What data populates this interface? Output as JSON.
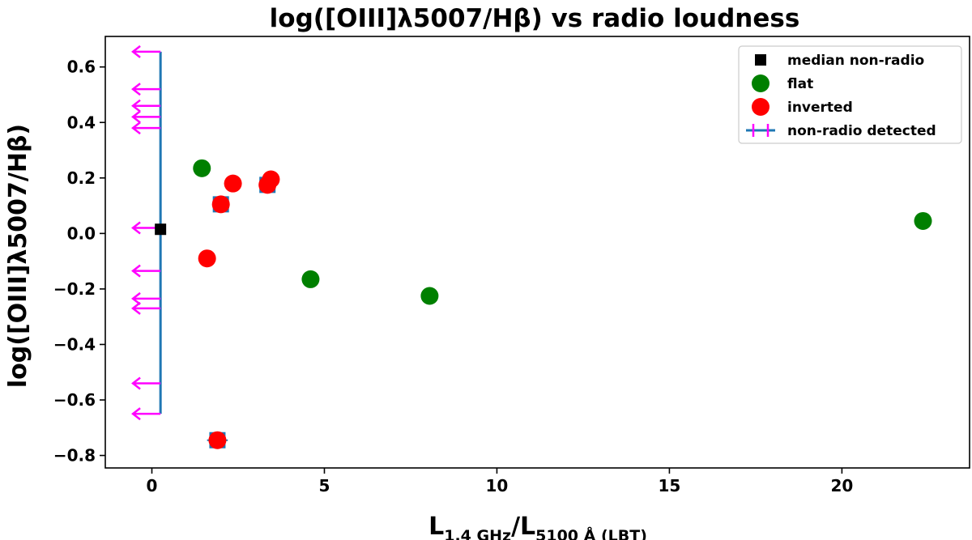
{
  "chart_data": {
    "type": "scatter",
    "title": "log([OIII]λ5007/Hβ) vs radio loudness",
    "xlabel": {
      "main": "L",
      "sub1": "1.4 GHz",
      "slash": "/L",
      "sub2": "5100 Å",
      "suffix": " (LBT)"
    },
    "ylabel": "log([OIII]λ5007/Hβ)",
    "xlim": [
      -1.35,
      23.7
    ],
    "ylim": [
      -0.845,
      0.71
    ],
    "xticks": [
      0,
      5,
      10,
      15,
      20
    ],
    "yticks": [
      -0.8,
      -0.6,
      -0.4,
      -0.2,
      0.0,
      0.2,
      0.4,
      0.6
    ],
    "xtick_labels": [
      "0",
      "5",
      "10",
      "15",
      "20"
    ],
    "ytick_labels": [
      "−0.8",
      "−0.6",
      "−0.4",
      "−0.2",
      "0.0",
      "0.2",
      "0.4",
      "0.6"
    ],
    "grid": false,
    "legend_position": "top-right",
    "colors": {
      "flat": "#008000",
      "inverted": "#ff0000",
      "median": "#000000",
      "upper_limit_arrow": "#ff00ff",
      "range_line": "#1f77b4",
      "error_bar": "#1f77b4"
    },
    "series": [
      {
        "name": "median non-radio",
        "marker": "square",
        "points": [
          {
            "x": 0.25,
            "y": 0.015
          }
        ]
      },
      {
        "name": "flat",
        "marker": "circle",
        "points": [
          {
            "x": 1.45,
            "y": 0.235
          },
          {
            "x": 4.6,
            "y": -0.165
          },
          {
            "x": 8.05,
            "y": -0.225
          },
          {
            "x": 22.35,
            "y": 0.045
          }
        ]
      },
      {
        "name": "inverted",
        "marker": "circle",
        "points": [
          {
            "x": 1.6,
            "y": -0.09
          },
          {
            "x": 1.9,
            "y": -0.745,
            "xerr": 0.3
          },
          {
            "x": 2.0,
            "y": 0.105,
            "xerr": 0.15
          },
          {
            "x": 2.35,
            "y": 0.18
          },
          {
            "x": 3.35,
            "y": 0.175,
            "xerr": 0.2
          },
          {
            "x": 3.45,
            "y": 0.195
          }
        ]
      },
      {
        "name": "non-radio detected",
        "marker": "left-arrow",
        "x_limit": 0.25,
        "arrow_length": 0.8,
        "y": [
          0.655,
          0.52,
          0.46,
          0.42,
          0.38,
          0.02,
          -0.135,
          -0.235,
          -0.27,
          -0.54,
          -0.65
        ],
        "range": [
          -0.65,
          0.655
        ]
      }
    ]
  }
}
